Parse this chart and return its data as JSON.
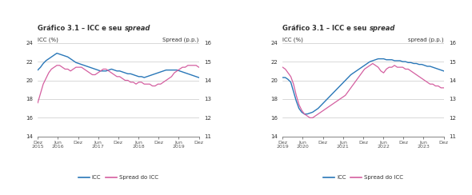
{
  "chart1": {
    "ylim_icc": [
      14,
      24
    ],
    "ylim_spread": [
      11,
      16
    ],
    "yticks_icc": [
      14,
      16,
      18,
      20,
      22,
      24
    ],
    "yticks_spread": [
      11,
      12,
      13,
      14,
      15,
      16
    ],
    "xtick_labels": [
      "Dez\n2015",
      "Jun\n2016",
      "Dez",
      "Jun\n2017",
      "Dez",
      "Jun\n2018",
      "Dez",
      "Jun\n2019",
      "Dez"
    ],
    "icc_color": "#2977b8",
    "spread_color": "#d45fa0",
    "icc_data": [
      21.1,
      21.4,
      21.8,
      22.1,
      22.3,
      22.5,
      22.7,
      22.9,
      22.8,
      22.7,
      22.6,
      22.5,
      22.3,
      22.1,
      21.9,
      21.8,
      21.7,
      21.6,
      21.5,
      21.4,
      21.3,
      21.2,
      21.1,
      21.0,
      21.0,
      21.0,
      21.1,
      21.2,
      21.1,
      21.0,
      21.0,
      20.9,
      20.8,
      20.7,
      20.7,
      20.6,
      20.5,
      20.4,
      20.4,
      20.3,
      20.4,
      20.5,
      20.6,
      20.7,
      20.8,
      20.9,
      21.0,
      21.1,
      21.1,
      21.1,
      21.1,
      21.1,
      21.0,
      20.9,
      20.8,
      20.7,
      20.6,
      20.5,
      20.4,
      20.3
    ],
    "spread_data": [
      12.8,
      13.3,
      13.8,
      14.1,
      14.4,
      14.6,
      14.7,
      14.8,
      14.8,
      14.7,
      14.6,
      14.6,
      14.5,
      14.6,
      14.7,
      14.7,
      14.7,
      14.6,
      14.5,
      14.4,
      14.3,
      14.3,
      14.4,
      14.5,
      14.6,
      14.6,
      14.5,
      14.4,
      14.3,
      14.2,
      14.2,
      14.1,
      14.0,
      14.0,
      13.9,
      13.9,
      13.8,
      13.9,
      13.9,
      13.8,
      13.8,
      13.8,
      13.7,
      13.7,
      13.8,
      13.8,
      13.9,
      14.0,
      14.1,
      14.2,
      14.4,
      14.5,
      14.6,
      14.7,
      14.7,
      14.8,
      14.8,
      14.8,
      14.8,
      14.7
    ]
  },
  "chart2": {
    "ylim_icc": [
      14,
      24
    ],
    "ylim_spread": [
      11,
      16
    ],
    "yticks_icc": [
      14,
      16,
      18,
      20,
      22,
      24
    ],
    "yticks_spread": [
      11,
      12,
      13,
      14,
      15,
      16
    ],
    "xtick_labels": [
      "Dez\n2019",
      "Jun\n2020",
      "Dez",
      "Jun\n2021",
      "Dez",
      "Jun\n2022",
      "Dez",
      "Jun\n2023",
      "Dez"
    ],
    "icc_color": "#2977b8",
    "spread_color": "#d45fa0",
    "icc_data": [
      20.3,
      20.3,
      20.1,
      19.8,
      18.8,
      17.8,
      17.0,
      16.6,
      16.4,
      16.4,
      16.5,
      16.6,
      16.8,
      17.0,
      17.3,
      17.6,
      17.9,
      18.2,
      18.5,
      18.8,
      19.1,
      19.4,
      19.7,
      20.0,
      20.3,
      20.6,
      20.8,
      21.0,
      21.2,
      21.4,
      21.6,
      21.8,
      22.0,
      22.1,
      22.2,
      22.3,
      22.3,
      22.3,
      22.2,
      22.2,
      22.2,
      22.1,
      22.1,
      22.1,
      22.0,
      22.0,
      21.9,
      21.9,
      21.8,
      21.8,
      21.7,
      21.7,
      21.6,
      21.5,
      21.5,
      21.4,
      21.3,
      21.2,
      21.1,
      21.0
    ],
    "spread_data": [
      14.7,
      14.6,
      14.4,
      14.2,
      13.8,
      13.2,
      12.7,
      12.4,
      12.2,
      12.1,
      12.0,
      12.0,
      12.1,
      12.2,
      12.3,
      12.4,
      12.5,
      12.6,
      12.7,
      12.8,
      12.9,
      13.0,
      13.1,
      13.2,
      13.4,
      13.6,
      13.8,
      14.0,
      14.2,
      14.4,
      14.6,
      14.7,
      14.8,
      14.9,
      14.8,
      14.7,
      14.5,
      14.4,
      14.6,
      14.7,
      14.7,
      14.8,
      14.7,
      14.7,
      14.7,
      14.6,
      14.6,
      14.5,
      14.4,
      14.3,
      14.2,
      14.1,
      14.0,
      13.9,
      13.8,
      13.8,
      13.7,
      13.7,
      13.6,
      13.6
    ]
  },
  "title_normal": "Gráfico 3.1 – ICC e seu ",
  "title_italic": "spread",
  "ylabel_left": "ICC (%)",
  "ylabel_right1": "Spread (p.p.)",
  "ylabel_right2": "spread (p.p.)",
  "legend_icc": "ICC",
  "legend_spread": "Spread do ICC",
  "bg_color": "#ffffff",
  "grid_color": "#bbbbbb",
  "text_color": "#333333",
  "axis_color": "#555555"
}
